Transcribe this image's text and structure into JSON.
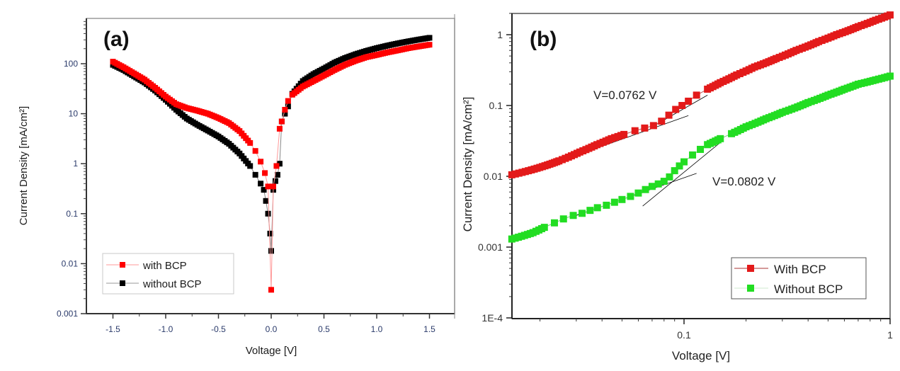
{
  "chart_data": [
    {
      "type": "scatter",
      "panel_label": "(a)",
      "title": "",
      "xlabel": "Voltage [V]",
      "ylabel": "Current Density [mA/cm²]",
      "xscale": "linear",
      "yscale": "log",
      "xlim": [
        -1.75,
        1.75
      ],
      "ylim": [
        0.001,
        700
      ],
      "xticks": [
        -1.5,
        -1.0,
        -0.5,
        0.0,
        0.5,
        1.0,
        1.5
      ],
      "xtick_labels": [
        "-1.5",
        "-1.0",
        "-0.5",
        "0.0",
        "0.5",
        "1.0",
        "1.5"
      ],
      "yticks": [
        0.001,
        0.01,
        0.1,
        1,
        10,
        100
      ],
      "ytick_labels": [
        "0.001",
        "0.01",
        "0.1",
        "1",
        "10",
        "100"
      ],
      "grid": false,
      "legend_position": "bottom-left",
      "series": [
        {
          "name": "with BCP",
          "color": "#ff0000",
          "x": [
            -1.5,
            -1.4,
            -1.3,
            -1.2,
            -1.1,
            -1.0,
            -0.9,
            -0.8,
            -0.7,
            -0.6,
            -0.5,
            -0.4,
            -0.3,
            -0.2,
            -0.15,
            -0.1,
            -0.06,
            -0.03,
            0.0,
            0.02,
            0.05,
            0.08,
            0.1,
            0.13,
            0.16,
            0.2,
            0.3,
            0.4,
            0.5,
            0.6,
            0.7,
            0.8,
            0.9,
            1.0,
            1.1,
            1.2,
            1.3,
            1.4,
            1.5
          ],
          "y": [
            110,
            85,
            64,
            48,
            33,
            22,
            15.5,
            13,
            11.5,
            10,
            8.2,
            6.5,
            4.5,
            2.6,
            1.8,
            1.1,
            0.65,
            0.35,
            0.003,
            0.35,
            0.9,
            5,
            7,
            12,
            18,
            24,
            35,
            45,
            58,
            75,
            95,
            115,
            135,
            150,
            168,
            185,
            205,
            222,
            240
          ]
        },
        {
          "name": "without BCP",
          "color": "#000000",
          "x": [
            -1.5,
            -1.4,
            -1.3,
            -1.2,
            -1.1,
            -1.0,
            -0.9,
            -0.8,
            -0.7,
            -0.6,
            -0.5,
            -0.4,
            -0.3,
            -0.2,
            -0.15,
            -0.1,
            -0.07,
            -0.05,
            -0.03,
            -0.01,
            0.0,
            0.02,
            0.04,
            0.06,
            0.08,
            0.1,
            0.13,
            0.16,
            0.2,
            0.3,
            0.4,
            0.5,
            0.6,
            0.7,
            0.8,
            0.9,
            1.0,
            1.1,
            1.2,
            1.3,
            1.4,
            1.5
          ],
          "y": [
            95,
            75,
            56,
            42,
            29,
            19,
            12,
            8,
            6,
            4.6,
            3.5,
            2.5,
            1.6,
            0.9,
            0.6,
            0.4,
            0.3,
            0.18,
            0.1,
            0.04,
            0.018,
            0.3,
            0.45,
            0.6,
            1.0,
            7,
            10,
            14,
            25,
            45,
            62,
            80,
            105,
            130,
            155,
            180,
            205,
            230,
            255,
            280,
            305,
            330
          ]
        }
      ]
    },
    {
      "type": "scatter",
      "panel_label": "(b)",
      "title": "",
      "xlabel": "Voltage [V]",
      "ylabel": "Current Density [mA/cm²]",
      "xscale": "log",
      "yscale": "log",
      "xlim": [
        0.0146,
        1
      ],
      "ylim": [
        0.0001,
        2.1
      ],
      "xticks": [
        0.1,
        1
      ],
      "xtick_labels": [
        "0.1",
        "1"
      ],
      "yticks": [
        0.0001,
        0.001,
        0.01,
        0.1,
        1
      ],
      "ytick_labels": [
        "1E-4",
        "0.001",
        "0.01",
        "0.1",
        "1"
      ],
      "grid": false,
      "legend_position": "bottom-right",
      "series": [
        {
          "name": "With BCP",
          "color": "#e31a1a",
          "x": [
            0.0146,
            0.0247,
            0.0312,
            0.0378,
            0.0444,
            0.0511,
            0.0578,
            0.0644,
            0.0711,
            0.0778,
            0.0844,
            0.0911,
            0.0978,
            0.105,
            0.115,
            0.13,
            0.15,
            0.18,
            0.22,
            0.28,
            0.35,
            0.45,
            0.55,
            0.7,
            0.85,
            1.0
          ],
          "y": [
            0.0105,
            0.0165,
            0.022,
            0.028,
            0.034,
            0.039,
            0.044,
            0.048,
            0.052,
            0.06,
            0.073,
            0.088,
            0.1,
            0.115,
            0.14,
            0.17,
            0.21,
            0.27,
            0.35,
            0.46,
            0.6,
            0.8,
            1.0,
            1.3,
            1.6,
            1.9
          ]
        },
        {
          "name": "Without BCP",
          "color": "#22dd22",
          "x": [
            0.0146,
            0.0185,
            0.021,
            0.0235,
            0.026,
            0.029,
            0.032,
            0.035,
            0.038,
            0.042,
            0.046,
            0.05,
            0.055,
            0.06,
            0.065,
            0.07,
            0.075,
            0.08,
            0.085,
            0.09,
            0.095,
            0.1,
            0.11,
            0.12,
            0.13,
            0.15,
            0.17,
            0.2,
            0.25,
            0.3,
            0.4,
            0.5,
            0.6,
            0.7,
            0.85,
            1.0
          ],
          "y": [
            0.0013,
            0.0016,
            0.0019,
            0.0022,
            0.0025,
            0.0028,
            0.003,
            0.0033,
            0.0036,
            0.0039,
            0.0043,
            0.0047,
            0.0052,
            0.0058,
            0.0065,
            0.0072,
            0.0078,
            0.0085,
            0.0098,
            0.012,
            0.014,
            0.016,
            0.02,
            0.024,
            0.028,
            0.034,
            0.04,
            0.05,
            0.065,
            0.08,
            0.11,
            0.14,
            0.17,
            0.2,
            0.23,
            0.26
          ]
        }
      ],
      "fit_lines": [
        {
          "series": "With BCP",
          "x": [
            0.0245,
            0.105
          ],
          "y": [
            0.016,
            0.072
          ],
          "color": "#000000"
        },
        {
          "series": "With BCP",
          "x": [
            0.07,
            0.13
          ],
          "y": [
            0.05,
            0.14
          ],
          "color": "#000000"
        },
        {
          "series": "Without BCP",
          "x": [
            0.028,
            0.115
          ],
          "y": [
            0.0026,
            0.011
          ],
          "color": "#000000"
        },
        {
          "series": "Without BCP",
          "x": [
            0.063,
            0.15
          ],
          "y": [
            0.0038,
            0.03
          ],
          "color": "#000000"
        }
      ],
      "annotations": [
        {
          "text": "V=0.0762 V",
          "x": 0.0762,
          "y": 0.13
        },
        {
          "text": "V=0.0802 V",
          "x": 0.125,
          "y": 0.0105
        }
      ]
    }
  ]
}
